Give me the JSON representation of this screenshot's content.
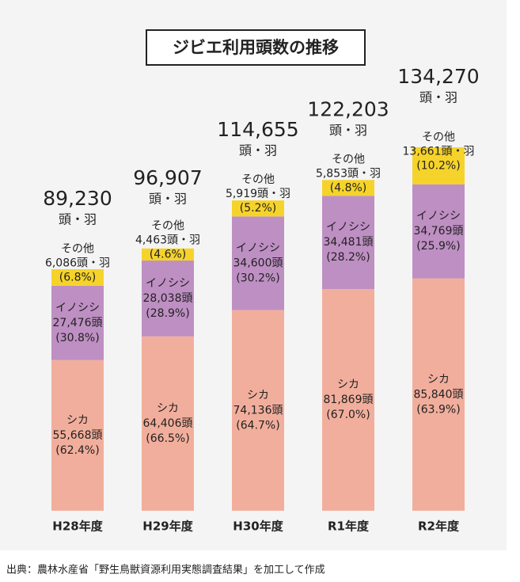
{
  "chart_data": {
    "type": "stacked_bar",
    "title": "ジビエ利用頭数の推移",
    "categories": [
      "H28年度",
      "H29年度",
      "H30年度",
      "R1年度",
      "R2年度"
    ],
    "series": [
      {
        "name": "シカ",
        "color": "#f2ae9c",
        "values": [
          55668,
          64406,
          74136,
          81869,
          85840
        ],
        "value_labels": [
          "55,668頭",
          "64,406頭",
          "74,136頭",
          "81,869頭",
          "85,840頭"
        ],
        "share_labels": [
          "(62.4%)",
          "(66.5%)",
          "(64.7%)",
          "(67.0%)",
          "(63.9%)"
        ]
      },
      {
        "name": "イノシシ",
        "color": "#be8fc3",
        "values": [
          27476,
          28038,
          34600,
          34481,
          34769
        ],
        "value_labels": [
          "27,476頭",
          "28,038頭",
          "34,600頭",
          "34,481頭",
          "34,769頭"
        ],
        "share_labels": [
          "(30.8%)",
          "(28.9%)",
          "(30.2%)",
          "(28.2%)",
          "(25.9%)"
        ]
      },
      {
        "name": "その他",
        "color": "#f6d32a",
        "values": [
          6086,
          4463,
          5919,
          5853,
          13661
        ],
        "value_labels": [
          "6,086頭・羽",
          "4,463頭・羽",
          "5,919頭・羽",
          "5,853頭・羽",
          "13,661頭・羽"
        ],
        "share_labels": [
          "(6.8%)",
          "(4.6%)",
          "(5.2%)",
          "(4.8%)",
          "(10.2%)"
        ]
      }
    ],
    "totals": [
      89230,
      96907,
      114655,
      122203,
      134270
    ],
    "total_labels": [
      "89,230",
      "96,907",
      "114,655",
      "122,203",
      "134,270"
    ],
    "total_unit": "頭・羽",
    "source": "出典：農林水産省「野生鳥獣資源利用実態調査結果」を加工して作成"
  }
}
